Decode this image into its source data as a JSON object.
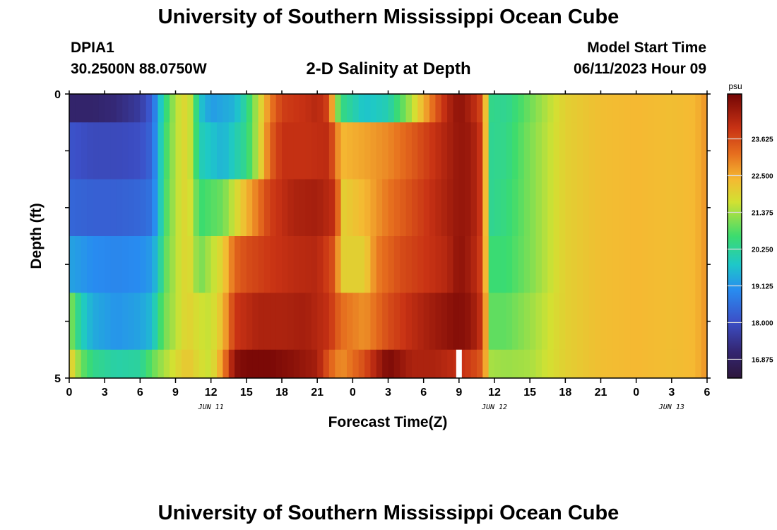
{
  "header": {
    "title": "University of Southern Mississippi Ocean Cube",
    "station_id": "DPIA1",
    "coordinates": "30.2500N  88.0750W",
    "plot_title": "2-D Salinity at Depth",
    "model_start_label": "Model Start Time",
    "model_start_value": "06/11/2023 Hour 09"
  },
  "footer": {
    "title": "University of Southern Mississippi Ocean Cube"
  },
  "chart_data": {
    "type": "heatmap",
    "title": "2-D Salinity at Depth",
    "xlabel": "Forecast Time(Z)",
    "ylabel": "Depth (ft)",
    "x_ticks": [
      "0",
      "3",
      "6",
      "9",
      "12",
      "15",
      "18",
      "21",
      "0",
      "3",
      "6",
      "9",
      "12",
      "15",
      "18",
      "21",
      "0",
      "3",
      "6"
    ],
    "x_ticks_hours": [
      0,
      3,
      6,
      9,
      12,
      15,
      18,
      21,
      24,
      27,
      30,
      33,
      36,
      39,
      42,
      45,
      48,
      51,
      54
    ],
    "x_range_hours": [
      0,
      54
    ],
    "day_labels": [
      {
        "text": "JUN 11",
        "hour": 12
      },
      {
        "text": "JUN 12",
        "hour": 36
      },
      {
        "text": "JUN 13",
        "hour": 51
      }
    ],
    "y_ticks": [
      "0",
      "5"
    ],
    "y_range": [
      0,
      5
    ],
    "depth_bins": [
      [
        0,
        0.5
      ],
      [
        0.5,
        1.5
      ],
      [
        1.5,
        2.5
      ],
      [
        2.5,
        3.5
      ],
      [
        3.5,
        4.5
      ],
      [
        4.5,
        5
      ]
    ],
    "colorbar": {
      "unit": "psu",
      "ticks": [
        "16.875",
        "18.000",
        "19.125",
        "20.250",
        "21.375",
        "22.500",
        "23.625"
      ],
      "tick_values": [
        16.875,
        18.0,
        19.125,
        20.25,
        21.375,
        22.5,
        23.625
      ],
      "range": [
        16.3,
        25.0
      ]
    },
    "missing_data": [
      {
        "hour": 33,
        "depth_bin": 5
      }
    ],
    "z_keyframes": [
      [
        [
          0,
          17.0
        ],
        [
          2,
          17.0
        ],
        [
          4,
          17.2
        ],
        [
          6,
          17.6
        ],
        [
          7,
          18.3
        ],
        [
          7.6,
          19.5
        ],
        [
          8,
          20.3
        ],
        [
          9,
          21.5
        ],
        [
          10,
          22.0
        ],
        [
          10.5,
          21.2
        ],
        [
          11,
          19.8
        ],
        [
          12,
          19.2
        ],
        [
          14,
          19.5
        ],
        [
          15,
          20.3
        ],
        [
          16,
          21.6
        ],
        [
          17,
          23.0
        ],
        [
          18,
          23.8
        ],
        [
          20,
          24.0
        ],
        [
          21,
          24.2
        ],
        [
          22,
          23.7
        ],
        [
          22.5,
          21.6
        ],
        [
          23,
          20.5
        ],
        [
          25,
          19.7
        ],
        [
          27,
          20.0
        ],
        [
          29,
          21.5
        ],
        [
          31,
          23.4
        ],
        [
          32,
          24.2
        ],
        [
          33,
          24.7
        ],
        [
          34,
          24.3
        ],
        [
          35,
          23.6
        ],
        [
          35.6,
          20.4
        ],
        [
          37,
          20.3
        ],
        [
          39,
          21.0
        ],
        [
          42,
          22.0
        ],
        [
          45,
          22.3
        ],
        [
          48,
          22.4
        ],
        [
          51,
          22.3
        ],
        [
          53,
          22.4
        ],
        [
          54,
          22.8
        ]
      ],
      [
        [
          0,
          18.1
        ],
        [
          2,
          17.9
        ],
        [
          4,
          17.9
        ],
        [
          6,
          18.0
        ],
        [
          7,
          18.4
        ],
        [
          7.6,
          19.6
        ],
        [
          8,
          20.5
        ],
        [
          9,
          21.5
        ],
        [
          10,
          22.0
        ],
        [
          10.5,
          21.2
        ],
        [
          11,
          20.0
        ],
        [
          13,
          19.5
        ],
        [
          15,
          20.4
        ],
        [
          16,
          21.6
        ],
        [
          17,
          23.3
        ],
        [
          18,
          24.0
        ],
        [
          20,
          24.0
        ],
        [
          22,
          24.1
        ],
        [
          23,
          22.4
        ],
        [
          25,
          22.6
        ],
        [
          27,
          22.9
        ],
        [
          29,
          23.4
        ],
        [
          31,
          24.0
        ],
        [
          33,
          24.6
        ],
        [
          34,
          24.5
        ],
        [
          35,
          23.8
        ],
        [
          35.6,
          20.3
        ],
        [
          37,
          20.4
        ],
        [
          39,
          21.1
        ],
        [
          42,
          22.0
        ],
        [
          45,
          22.3
        ],
        [
          48,
          22.4
        ],
        [
          51,
          22.3
        ],
        [
          53,
          22.4
        ],
        [
          54,
          22.8
        ]
      ],
      [
        [
          0,
          18.4
        ],
        [
          2,
          18.3
        ],
        [
          4,
          18.3
        ],
        [
          6,
          18.4
        ],
        [
          7,
          18.6
        ],
        [
          7.6,
          19.6
        ],
        [
          8,
          20.6
        ],
        [
          9,
          21.5
        ],
        [
          10,
          22.0
        ],
        [
          10.5,
          21.4
        ],
        [
          11,
          20.6
        ],
        [
          13,
          21.0
        ],
        [
          15,
          22.4
        ],
        [
          17,
          23.8
        ],
        [
          19,
          24.3
        ],
        [
          21,
          24.4
        ],
        [
          22.6,
          24.0
        ],
        [
          23,
          22.0
        ],
        [
          25,
          22.4
        ],
        [
          27,
          23.1
        ],
        [
          29,
          23.6
        ],
        [
          31,
          24.1
        ],
        [
          33,
          24.6
        ],
        [
          34,
          24.5
        ],
        [
          35,
          23.8
        ],
        [
          35.6,
          20.3
        ],
        [
          37,
          20.5
        ],
        [
          39,
          21.1
        ],
        [
          42,
          22.0
        ],
        [
          45,
          22.3
        ],
        [
          48,
          22.4
        ],
        [
          51,
          22.3
        ],
        [
          53,
          22.4
        ],
        [
          54,
          22.8
        ]
      ],
      [
        [
          0,
          19.3
        ],
        [
          2,
          19.0
        ],
        [
          4,
          18.9
        ],
        [
          6,
          19.0
        ],
        [
          7,
          19.2
        ],
        [
          7.6,
          19.9
        ],
        [
          8,
          20.8
        ],
        [
          9,
          21.5
        ],
        [
          10,
          22.0
        ],
        [
          10.5,
          21.6
        ],
        [
          11,
          21.0
        ],
        [
          13,
          22.0
        ],
        [
          14,
          23.3
        ],
        [
          15,
          23.6
        ],
        [
          17,
          23.9
        ],
        [
          19,
          24.1
        ],
        [
          21,
          24.2
        ],
        [
          22.5,
          23.5
        ],
        [
          23,
          22.0
        ],
        [
          25,
          22.0
        ],
        [
          26,
          23.0
        ],
        [
          28,
          23.6
        ],
        [
          30,
          23.9
        ],
        [
          32,
          24.2
        ],
        [
          33,
          24.7
        ],
        [
          34,
          24.4
        ],
        [
          35,
          23.7
        ],
        [
          35.6,
          20.6
        ],
        [
          37,
          20.6
        ],
        [
          39,
          21.1
        ],
        [
          42,
          22.0
        ],
        [
          45,
          22.3
        ],
        [
          48,
          22.4
        ],
        [
          51,
          22.3
        ],
        [
          53,
          22.4
        ],
        [
          54,
          22.8
        ]
      ],
      [
        [
          0,
          21.3
        ],
        [
          1,
          20.0
        ],
        [
          2,
          19.4
        ],
        [
          4,
          19.1
        ],
        [
          6,
          19.3
        ],
        [
          7,
          19.6
        ],
        [
          7.6,
          20.5
        ],
        [
          8,
          21.0
        ],
        [
          9,
          21.5
        ],
        [
          10,
          22.0
        ],
        [
          11,
          21.7
        ],
        [
          12,
          21.6
        ],
        [
          13,
          22.3
        ],
        [
          14,
          23.9
        ],
        [
          16,
          24.3
        ],
        [
          18,
          24.3
        ],
        [
          20,
          24.4
        ],
        [
          22,
          24.0
        ],
        [
          23,
          23.2
        ],
        [
          25,
          22.8
        ],
        [
          27,
          23.6
        ],
        [
          29,
          24.1
        ],
        [
          31,
          24.5
        ],
        [
          33,
          24.8
        ],
        [
          34,
          24.6
        ],
        [
          35,
          23.9
        ],
        [
          35.6,
          20.9
        ],
        [
          37,
          20.9
        ],
        [
          39,
          21.3
        ],
        [
          42,
          22.0
        ],
        [
          45,
          22.3
        ],
        [
          48,
          22.4
        ],
        [
          51,
          22.3
        ],
        [
          53,
          22.4
        ],
        [
          54,
          22.8
        ]
      ],
      [
        [
          0,
          22.2
        ],
        [
          0.5,
          21.6
        ],
        [
          1,
          21.0
        ],
        [
          2,
          20.4
        ],
        [
          4,
          20.1
        ],
        [
          6,
          20.2
        ],
        [
          7,
          20.9
        ],
        [
          8,
          21.4
        ],
        [
          9,
          21.8
        ],
        [
          10,
          22.2
        ],
        [
          11,
          21.8
        ],
        [
          12,
          21.6
        ],
        [
          13,
          22.8
        ],
        [
          14,
          24.7
        ],
        [
          15,
          24.9
        ],
        [
          17,
          24.9
        ],
        [
          19,
          24.7
        ],
        [
          21,
          24.4
        ],
        [
          22,
          23.4
        ],
        [
          23,
          22.8
        ],
        [
          25,
          23.6
        ],
        [
          26,
          24.3
        ],
        [
          27,
          24.9
        ],
        [
          28,
          24.6
        ],
        [
          29,
          24.3
        ],
        [
          31,
          24.3
        ],
        [
          33,
          24.0
        ],
        [
          34,
          23.8
        ],
        [
          35,
          23.4
        ],
        [
          35.6,
          21.4
        ],
        [
          37,
          21.3
        ],
        [
          39,
          21.4
        ],
        [
          42,
          22.0
        ],
        [
          45,
          22.3
        ],
        [
          48,
          22.4
        ],
        [
          51,
          22.3
        ],
        [
          53,
          22.4
        ],
        [
          54,
          22.8
        ]
      ]
    ]
  }
}
